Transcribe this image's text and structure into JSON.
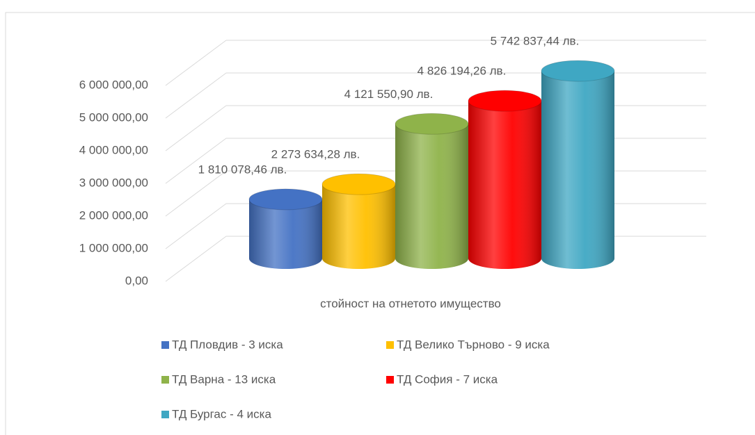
{
  "chart_data": {
    "type": "bar3d",
    "categories": [
      "стойност на отнетото имущество"
    ],
    "series": [
      {
        "name": "ТД Пловдив - 3 иска",
        "color": "#4472c4",
        "values": [
          1810078.46
        ],
        "value_labels": [
          "1 810 078,46 лв."
        ]
      },
      {
        "name": "ТД Велико Търново - 9 иска",
        "color": "#ffc000",
        "values": [
          2273634.28
        ],
        "value_labels": [
          "2 273 634,28 лв."
        ]
      },
      {
        "name": "ТД Варна - 13 иска",
        "color": "#8fb34a",
        "values": [
          4121550.9
        ],
        "value_labels": [
          "4 121 550,90 лв."
        ]
      },
      {
        "name": "ТД София - 7 иска",
        "color": "#ff0000",
        "values": [
          4826194.26
        ],
        "value_labels": [
          "4 826 194,26 лв."
        ]
      },
      {
        "name": "ТД Бургас - 4 иска",
        "color": "#3fa7c3",
        "values": [
          5742837.44
        ],
        "value_labels": [
          "5 742 837,44 лв."
        ]
      }
    ],
    "ylim": [
      0,
      6000000
    ],
    "yticks": [
      {
        "value": 0,
        "label": "0,00"
      },
      {
        "value": 1000000,
        "label": "1 000 000,00"
      },
      {
        "value": 2000000,
        "label": "2 000 000,00"
      },
      {
        "value": 3000000,
        "label": "3 000 000,00"
      },
      {
        "value": 4000000,
        "label": "4 000 000,00"
      },
      {
        "value": 5000000,
        "label": "5 000 000,00"
      },
      {
        "value": 6000000,
        "label": "6 000 000,00"
      }
    ],
    "grid": true
  }
}
